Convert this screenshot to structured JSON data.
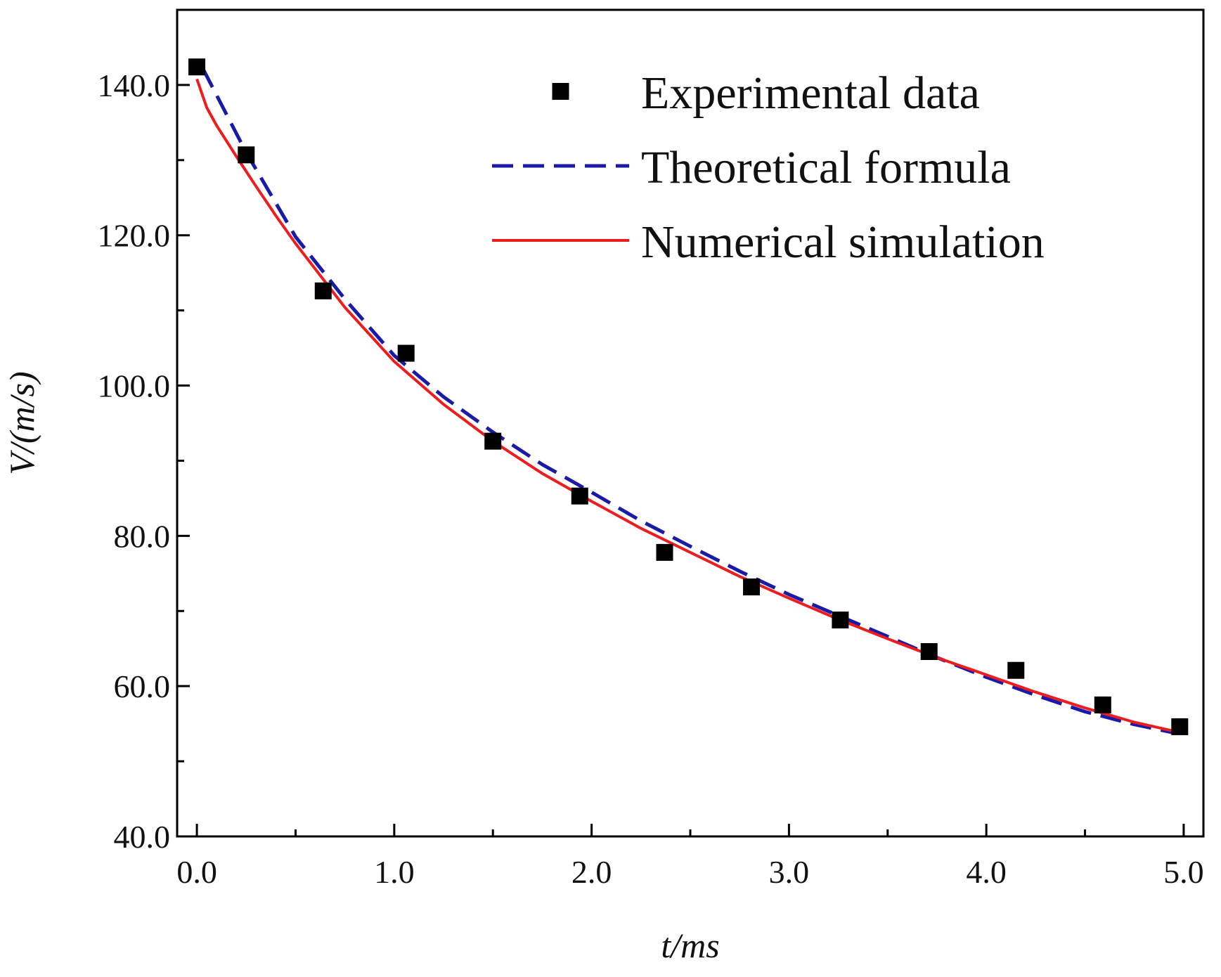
{
  "chart_data": {
    "type": "line",
    "xlabel": "t/ms",
    "ylabel": "V/(m/s)",
    "xlim": [
      -0.1,
      5.1
    ],
    "ylim": [
      40,
      150
    ],
    "x_ticks": [
      0,
      1,
      2,
      3,
      4,
      5
    ],
    "x_tick_labels": [
      "0.0",
      "1.0",
      "2.0",
      "3.0",
      "4.0",
      "5.0"
    ],
    "x_minor_ticks": [
      0.5,
      1.5,
      2.5,
      3.5,
      4.5
    ],
    "y_ticks": [
      40,
      60,
      80,
      100,
      120,
      140
    ],
    "y_tick_labels": [
      "40.0",
      "60.0",
      "80.0",
      "100.0",
      "120.0",
      "140.0"
    ],
    "y_minor_ticks": [
      50,
      70,
      90,
      110,
      130
    ],
    "grid": false,
    "legend_position": "top-right",
    "series": [
      {
        "name": "Experimental data",
        "kind": "scatter",
        "color": "#000000",
        "x": [
          0.0,
          0.25,
          0.64,
          1.06,
          1.5,
          1.94,
          2.37,
          2.81,
          3.26,
          3.71,
          4.15,
          4.59,
          4.98
        ],
        "y": [
          142.4,
          130.7,
          112.6,
          104.3,
          92.6,
          85.3,
          77.8,
          73.2,
          68.8,
          64.6,
          62.1,
          57.5,
          54.6
        ]
      },
      {
        "name": "Theoretical formula",
        "kind": "line",
        "style": "dashed",
        "color": "#1a1aa8",
        "x": [
          0.03,
          0.25,
          0.5,
          0.75,
          1.0,
          1.25,
          1.5,
          1.75,
          2.0,
          2.25,
          2.5,
          2.75,
          3.0,
          3.25,
          3.5,
          3.75,
          4.0,
          4.25,
          4.5,
          4.75,
          4.95
        ],
        "y": [
          142.2,
          131.0,
          119.8,
          111.5,
          104.0,
          98.5,
          93.8,
          89.5,
          85.8,
          82.0,
          78.6,
          75.3,
          72.2,
          69.4,
          66.6,
          63.8,
          61.2,
          58.8,
          56.6,
          54.9,
          53.8
        ]
      },
      {
        "name": "Numerical simulation",
        "kind": "line",
        "style": "solid",
        "color": "#ee1c1c",
        "x": [
          0.0,
          0.05,
          0.1,
          0.2,
          0.3,
          0.4,
          0.5,
          0.75,
          1.0,
          1.25,
          1.5,
          1.75,
          2.0,
          2.25,
          2.5,
          2.75,
          3.0,
          3.25,
          3.5,
          3.75,
          4.0,
          4.25,
          4.5,
          4.75,
          4.97
        ],
        "y": [
          140.8,
          137.0,
          134.6,
          130.5,
          126.5,
          122.6,
          118.9,
          110.4,
          103.2,
          97.5,
          92.6,
          88.3,
          84.6,
          81.0,
          77.8,
          74.6,
          71.7,
          68.9,
          66.3,
          63.8,
          61.5,
          59.2,
          57.1,
          55.2,
          53.9
        ]
      }
    ]
  }
}
